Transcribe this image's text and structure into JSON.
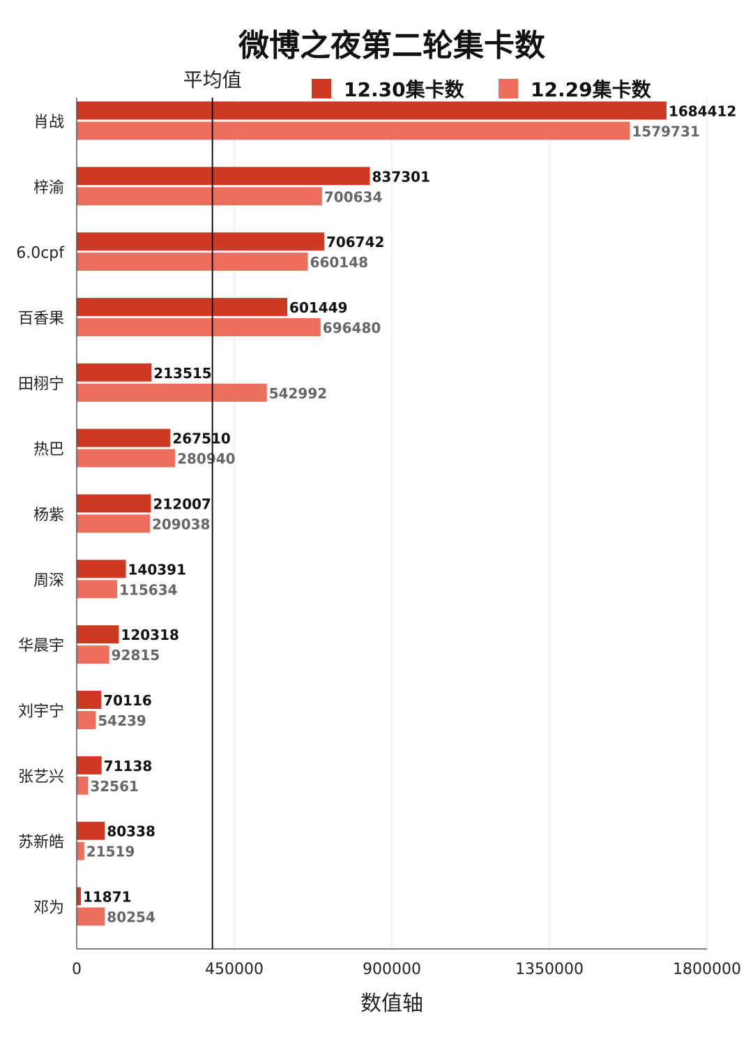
{
  "chart_data": {
    "type": "bar",
    "orientation": "horizontal",
    "title": "微博之夜第二轮集卡数",
    "xlabel": "数值轴",
    "ylabel": "",
    "xlim": [
      0,
      1800000
    ],
    "x_ticks": [
      "0",
      "450000",
      "900000",
      "1350000",
      "1800000"
    ],
    "grid": true,
    "legend": "top-right",
    "categories": [
      "肖战",
      "梓渝",
      "6.0cpf",
      "百香果",
      "田栩宁",
      "热巴",
      "杨紫",
      "周深",
      "华晨宇",
      "刘宇宁",
      "张艺兴",
      "苏新皓",
      "邓为"
    ],
    "series": [
      {
        "name": "12.30集卡数",
        "color": "#cc3a24",
        "values": [
          1684412,
          837301,
          706742,
          601449,
          213515,
          267510,
          212007,
          140391,
          120318,
          70116,
          71138,
          80338,
          11871
        ]
      },
      {
        "name": "12.29集卡数",
        "color": "#ec6e5c",
        "values": [
          1579731,
          700634,
          660148,
          696480,
          542992,
          280940,
          209038,
          115634,
          92815,
          54239,
          32561,
          21519,
          80254
        ]
      }
    ],
    "reference_line": {
      "label": "平均值",
      "value": 387600
    }
  }
}
